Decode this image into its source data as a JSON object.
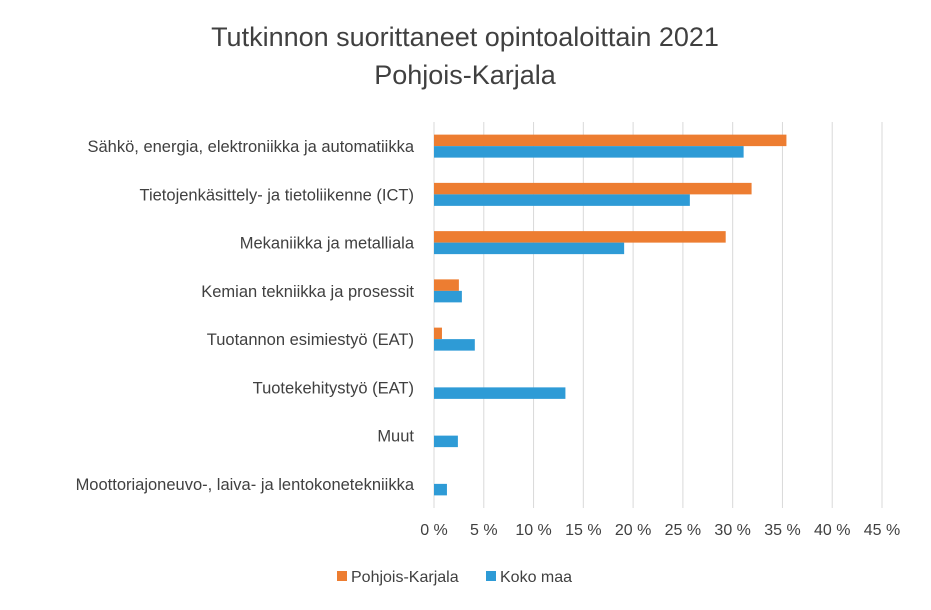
{
  "chart_data": {
    "type": "bar",
    "orientation": "horizontal",
    "title": [
      "Tutkinnon suorittaneet opintoaloittain 2021",
      "Pohjois-Karjala"
    ],
    "categories": [
      "Sähkö, energia, elektroniikka ja automatiikka",
      "Tietojenkäsittely- ja tietoliikenne (ICT)",
      "Mekaniikka ja metalliala",
      "Kemian tekniikka ja prosessit",
      "Tuotannon esimiestyö (EAT)",
      "Tuotekehitystyö (EAT)",
      "Muut",
      "Moottoriajoneuvo-, laiva- ja lentokonetekniikka"
    ],
    "series": [
      {
        "name": "Pohjois-Karjala",
        "color": "#ED7D31",
        "values": [
          35.4,
          31.9,
          29.3,
          2.5,
          0.8,
          0,
          0,
          0
        ]
      },
      {
        "name": "Koko maa",
        "color": "#2E9BD6",
        "values": [
          31.1,
          25.7,
          19.1,
          2.8,
          4.1,
          13.2,
          2.4,
          1.3
        ]
      }
    ],
    "xlim": [
      0,
      45
    ],
    "xticks": [
      "0 %",
      "5 %",
      "10 %",
      "15 %",
      "20 %",
      "25 %",
      "30 %",
      "35 %",
      "40 %",
      "45 %"
    ],
    "grid": true,
    "legend_position": "bottom"
  }
}
